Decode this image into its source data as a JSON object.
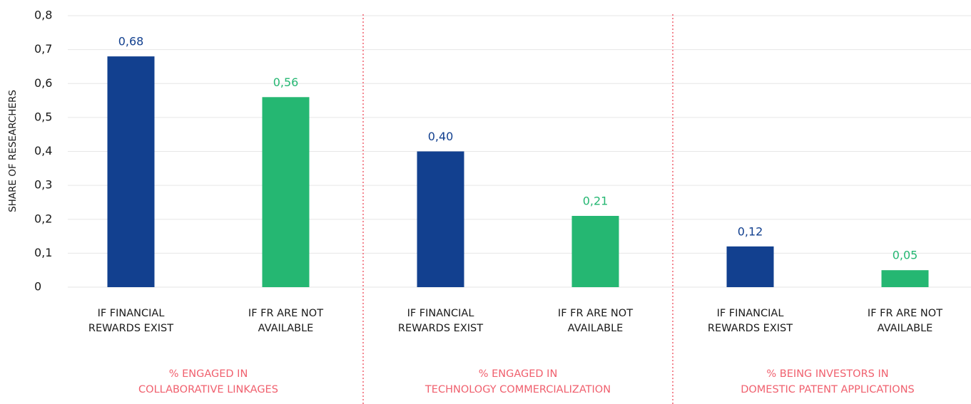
{
  "chart_data": {
    "type": "bar",
    "y_label": "SHARE OF RESEARCHERS",
    "categories": [
      [
        "IF FINANCIAL",
        "REWARDS EXIST"
      ],
      [
        "IF FR ARE NOT",
        "AVAILABLE"
      ],
      [
        "IF FINANCIAL",
        "REWARDS EXIST"
      ],
      [
        "IF FR ARE NOT",
        "AVAILABLE"
      ],
      [
        "IF FINANCIAL",
        "REWARDS EXIST"
      ],
      [
        "IF FR ARE NOT",
        "AVAILABLE"
      ]
    ],
    "groups": [
      [
        "% ENGAGED IN",
        "COLLABORATIVE LINKAGES"
      ],
      [
        "% ENGAGED IN",
        "TECHNOLOGY COMMERCIALIZATION"
      ],
      [
        "% BEING INVESTORS IN",
        "DOMESTIC PATENT APPLICATIONS"
      ]
    ],
    "values": [
      0.68,
      0.56,
      0.4,
      0.21,
      0.12,
      0.05
    ],
    "value_labels": [
      "0,68",
      "0,56",
      "0,40",
      "0,21",
      "0,12",
      "0,05"
    ],
    "colors": [
      "#12408f",
      "#25b772",
      "#12408f",
      "#25b772",
      "#12408f",
      "#25b772"
    ],
    "ylim": [
      0,
      0.8
    ],
    "yticks": [
      0,
      {
        "value": 0.1,
        "label": "0,1"
      },
      {
        "value": 0.2,
        "label": "0,2"
      },
      {
        "value": 0.3,
        "label": "0,3"
      },
      {
        "value": 0.4,
        "label": "0,4"
      },
      {
        "value": 0.5,
        "label": "0,5"
      },
      {
        "value": 0.6,
        "label": "0,6"
      },
      {
        "value": 0.7,
        "label": "0,7"
      },
      {
        "value": 0.8,
        "label": "0,8"
      }
    ],
    "grid": true
  }
}
